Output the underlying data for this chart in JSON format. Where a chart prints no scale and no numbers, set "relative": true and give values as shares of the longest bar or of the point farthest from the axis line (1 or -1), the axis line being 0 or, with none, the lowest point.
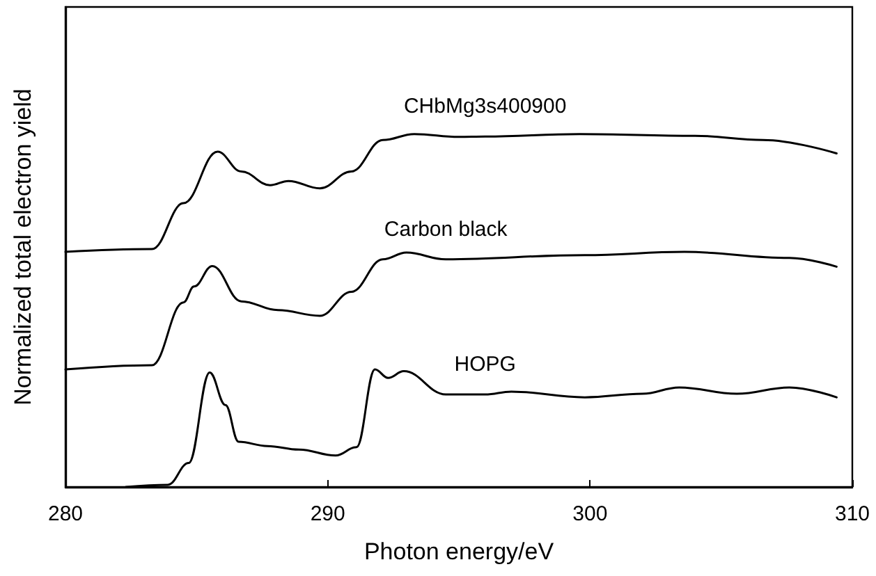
{
  "chart_data": {
    "type": "line",
    "relative": true,
    "xlabel": "Photon energy/eV",
    "ylabel": "Normalized total electron yield",
    "xlim": [
      280,
      310
    ],
    "xticks": [
      280,
      290,
      300,
      310
    ],
    "grid": false,
    "legend": false,
    "marker": "none",
    "line_style": "solid",
    "series": [
      {
        "name": "CHbMg3s400900",
        "color": "#000000",
        "x": [
          280,
          283.3,
          284.5,
          285.8,
          286.7,
          287.8,
          288.5,
          289.7,
          290.9,
          292.1,
          293.3,
          295.0,
          296.0,
          299.6,
          304.0,
          306.6,
          309.4
        ],
        "values": [
          0.666,
          0.674,
          0.804,
          0.95,
          0.894,
          0.855,
          0.867,
          0.846,
          0.894,
          0.983,
          1.0,
          0.992,
          0.993,
          1.0,
          0.995,
          0.983,
          0.945
        ]
      },
      {
        "name": "Carbon black",
        "color": "#000000",
        "x": [
          280,
          283.3,
          284.5,
          284.9,
          285.6,
          286.7,
          288.1,
          289.7,
          290.9,
          292.1,
          293.0,
          294.5,
          299.8,
          303.6,
          307.6,
          309.4
        ],
        "values": [
          0.333,
          0.345,
          0.523,
          0.568,
          0.626,
          0.526,
          0.501,
          0.485,
          0.553,
          0.645,
          0.664,
          0.645,
          0.657,
          0.666,
          0.649,
          0.624
        ]
      },
      {
        "name": "HOPG",
        "color": "#000000",
        "x": [
          282.3,
          283.9,
          284.7,
          285.5,
          286.1,
          286.6,
          287.7,
          288.9,
          290.3,
          291.1,
          291.8,
          292.3,
          292.9,
          294.5,
          296.0,
          297.0,
          299.8,
          302.0,
          303.4,
          305.6,
          307.6,
          309.4
        ],
        "values": [
          0,
          0.006,
          0.068,
          0.324,
          0.232,
          0.128,
          0.116,
          0.106,
          0.089,
          0.113,
          0.333,
          0.309,
          0.328,
          0.262,
          0.262,
          0.27,
          0.254,
          0.264,
          0.282,
          0.264,
          0.282,
          0.254
        ]
      }
    ]
  }
}
